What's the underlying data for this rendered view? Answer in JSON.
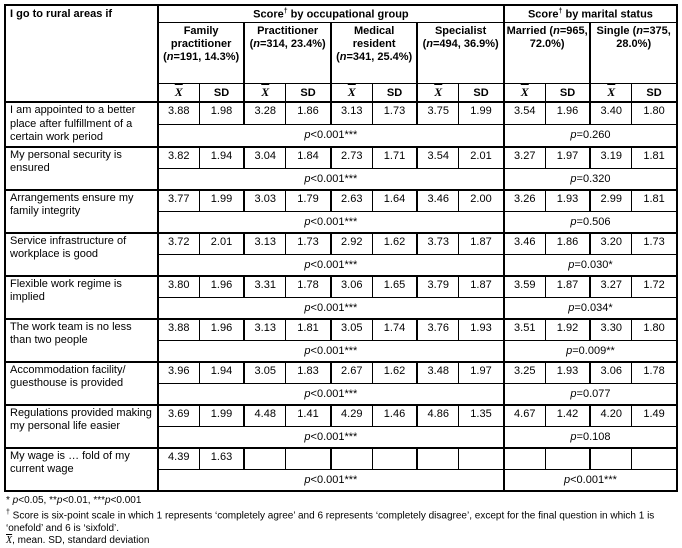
{
  "table": {
    "corner_label": "I go to rural areas if",
    "score_label": "Score",
    "dagger": "†",
    "occ_header_suffix": " by occupational group",
    "mar_header_suffix": " by marital status",
    "mean_symbol": "X",
    "sd_label": "SD",
    "p_label": "p",
    "groups": [
      {
        "name": "Family practitioner",
        "n_prefix": " (",
        "n_italic": "n",
        "n_suffix": "=191, 14.3%)"
      },
      {
        "name": "Practitioner",
        "n_prefix": " (",
        "n_italic": "n",
        "n_suffix": "=314, 23.4%)"
      },
      {
        "name": "Medical resident",
        "n_prefix": " (",
        "n_italic": "n",
        "n_suffix": "=341, 25.4%)"
      },
      {
        "name": "Specialist",
        "n_prefix": " (",
        "n_italic": "n",
        "n_suffix": "=494, 36.9%)"
      },
      {
        "name": "Married",
        "n_prefix": " (",
        "n_italic": "n",
        "n_suffix": "=965, 72.0%)"
      },
      {
        "name": "Single",
        "n_prefix": " (",
        "n_italic": "n",
        "n_suffix": "=375, 28.0%)"
      }
    ],
    "rows": [
      {
        "label": "I am appointed to a better place after fulfillment of a certain work period",
        "values": [
          "3.88",
          "1.98",
          "3.28",
          "1.86",
          "3.13",
          "1.73",
          "3.75",
          "1.99",
          "3.54",
          "1.96",
          "3.40",
          "1.80"
        ],
        "occ_p": "<0.001***",
        "mar_p": "=0.260"
      },
      {
        "label": "My personal security is ensured",
        "values": [
          "3.82",
          "1.94",
          "3.04",
          "1.84",
          "2.73",
          "1.71",
          "3.54",
          "2.01",
          "3.27",
          "1.97",
          "3.19",
          "1.81"
        ],
        "occ_p": "<0.001***",
        "mar_p": "=0.320"
      },
      {
        "label": "Arrangements ensure my family integrity",
        "values": [
          "3.77",
          "1.99",
          "3.03",
          "1.79",
          "2.63",
          "1.64",
          "3.46",
          "2.00",
          "3.26",
          "1.93",
          "2.99",
          "1.81"
        ],
        "occ_p": "<0.001***",
        "mar_p": "=0.506"
      },
      {
        "label": "Service infrastructure of workplace is good",
        "values": [
          "3.72",
          "2.01",
          "3.13",
          "1.73",
          "2.92",
          "1.62",
          "3.73",
          "1.87",
          "3.46",
          "1.86",
          "3.20",
          "1.73"
        ],
        "occ_p": "<0.001***",
        "mar_p": "=0.030*"
      },
      {
        "label": "Flexible work regime is implied",
        "values": [
          "3.80",
          "1.96",
          "3.31",
          "1.78",
          "3.06",
          "1.65",
          "3.79",
          "1.87",
          "3.59",
          "1.87",
          "3.27",
          "1.72"
        ],
        "occ_p": "<0.001***",
        "mar_p": "=0.034*"
      },
      {
        "label": "The work team is no less than two people",
        "values": [
          "3.88",
          "1.96",
          "3.13",
          "1.81",
          "3.05",
          "1.74",
          "3.76",
          "1.93",
          "3.51",
          "1.92",
          "3.30",
          "1.80"
        ],
        "occ_p": "<0.001***",
        "mar_p": "=0.009**"
      },
      {
        "label": "Accommodation facility/ guesthouse is provided",
        "values": [
          "3.96",
          "1.94",
          "3.05",
          "1.83",
          "2.67",
          "1.62",
          "3.48",
          "1.97",
          "3.25",
          "1.93",
          "3.06",
          "1.78"
        ],
        "occ_p": "<0.001***",
        "mar_p": "=0.077"
      },
      {
        "label": "Regulations provided making my personal life easier",
        "values": [
          "3.69",
          "1.99",
          "4.48",
          "1.41",
          "4.29",
          "1.46",
          "4.86",
          "1.35",
          "4.67",
          "1.42",
          "4.20",
          "1.49"
        ],
        "occ_p": "<0.001***",
        "mar_p": "=0.108"
      },
      {
        "label": "My wage is … fold of my current wage",
        "values": [
          "4.39",
          "1.63",
          "",
          "",
          "",
          "",
          "",
          "",
          "",
          "",
          "",
          ""
        ],
        "occ_p": "<0.001***",
        "mar_p": "<0.001***"
      }
    ]
  },
  "footnotes": {
    "significance": {
      "parts": [
        "* ",
        "p",
        "<0.05, **",
        "p",
        "<0.01, ***",
        "p",
        "<0.001"
      ]
    },
    "scale": {
      "symbol": "†",
      "text": " Score is six-point scale in which 1 represents ‘completely agree’ and 6 represents ‘completely disagree’, except for the final question in which 1 is ‘onefold’ and 6 is ‘sixfold’."
    },
    "abbrev": {
      "symbol": "X",
      "text": ", mean. SD, standard deviation"
    }
  }
}
